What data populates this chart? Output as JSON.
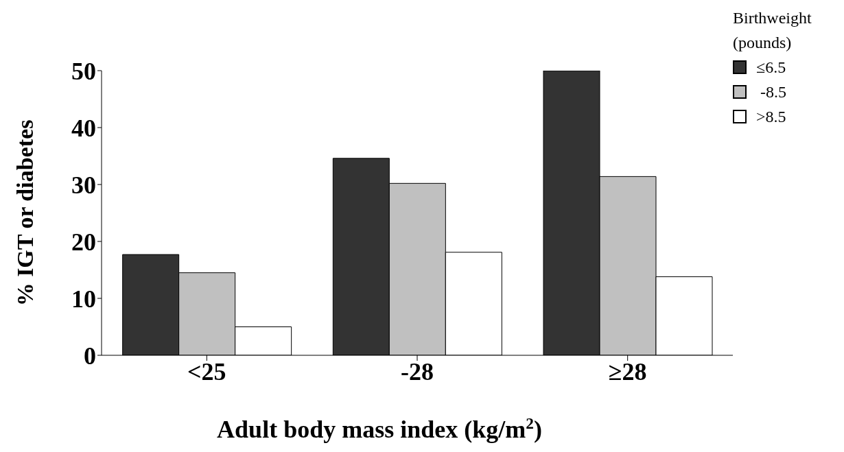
{
  "chart_data": {
    "type": "bar",
    "xlabel": "Adult body mass index (kg/m$^{2}$)",
    "ylabel": "%  IGT or diabetes",
    "legend_title": "Birthweight (pounds)",
    "legend": "top right",
    "categories": [
      "<25",
      "-28",
      "≥28"
    ],
    "series": [
      {
        "name": "≤6.5",
        "color": "#333333",
        "values": [
          17.7,
          34.6,
          50
        ]
      },
      {
        "name": " -8.5",
        "color": "#c0c0c0",
        "values": [
          14.5,
          30.2,
          31.4
        ]
      },
      {
        "name": ">8.5",
        "color": "#ffffff",
        "values": [
          5,
          18.1,
          13.8
        ]
      }
    ],
    "ylim": [
      0,
      50
    ],
    "yticks": [
      0,
      10,
      20,
      30,
      40,
      50
    ],
    "grid": false
  }
}
